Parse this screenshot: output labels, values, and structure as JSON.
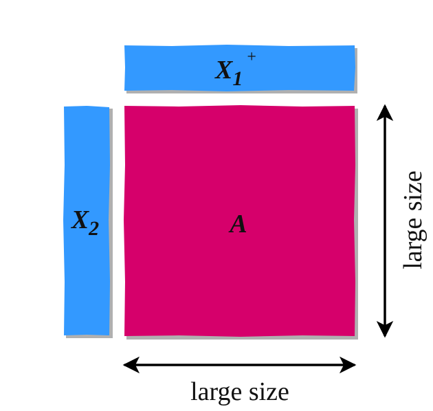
{
  "diagram": {
    "top_matrix": {
      "symbol": "X",
      "subscript": "1",
      "superscript": "+"
    },
    "left_matrix": {
      "symbol": "X",
      "subscript": "2"
    },
    "center_matrix": {
      "symbol": "A"
    },
    "width_label": "large size",
    "height_label": "large size"
  },
  "colors": {
    "x_matrix_fill": "#3399ff",
    "a_matrix_fill": "#d6006b",
    "shadow": "#b0b0b0",
    "arrow": "#000000",
    "text": "#111111"
  }
}
